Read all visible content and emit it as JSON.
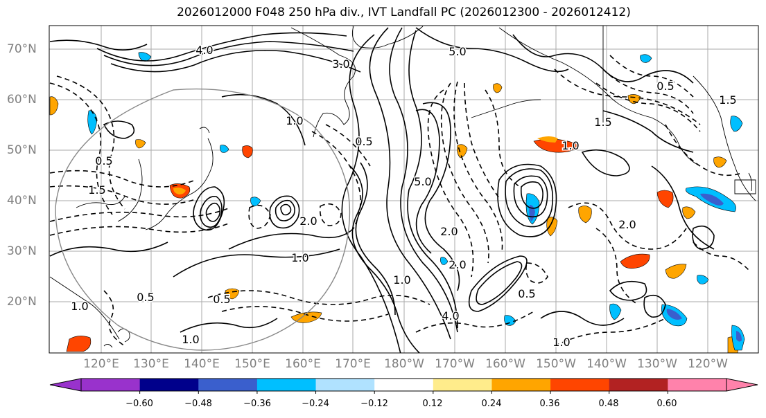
{
  "title": "2026012000 F048 250 hPa div., IVT Landfall PC (2026012300 - 2026012412)",
  "latitude_labels": [
    "70°N",
    "60°N",
    "50°N",
    "40°N",
    "30°N",
    "20°N"
  ],
  "longitude_labels": [
    "120°E",
    "130°E",
    "140°E",
    "150°E",
    "160°E",
    "170°E",
    "180°W",
    "170°W",
    "160°W",
    "150°W",
    "140°W",
    "130°W",
    "120°W"
  ],
  "colorbar": {
    "colors": [
      "#9932cc",
      "#00008b",
      "#3a5fcd",
      "#00bfff",
      "#b0e2ff",
      "#ffffff",
      "#ffec8b",
      "#ffa500",
      "#ff4500",
      "#b22222",
      "#ff82ab"
    ],
    "tick_labels": [
      "−0.60",
      "−0.48",
      "−0.36",
      "−0.24",
      "−0.12",
      "0.12",
      "0.24",
      "0.36",
      "0.48",
      "0.60"
    ]
  },
  "contour_labels": [
    {
      "text": "5.0"
    },
    {
      "text": "3.0"
    },
    {
      "text": "4.0"
    },
    {
      "text": "1.0"
    },
    {
      "text": "0.5"
    },
    {
      "text": "1.5"
    },
    {
      "text": "2.0"
    },
    {
      "text": "5.0"
    },
    {
      "text": "2.0"
    },
    {
      "text": "0.5"
    },
    {
      "text": "1.0"
    },
    {
      "text": "1.5"
    },
    {
      "text": "1.0"
    },
    {
      "text": "0.5"
    },
    {
      "text": "1.0"
    },
    {
      "text": "4.0"
    },
    {
      "text": "1.0"
    },
    {
      "text": "2.0"
    },
    {
      "text": "1.5"
    },
    {
      "text": "0.5"
    },
    {
      "text": "0.5"
    },
    {
      "text": "1.0"
    },
    {
      "text": "0.5"
    },
    {
      "text": "2.0"
    },
    {
      "text": "1.0"
    }
  ],
  "colors": {
    "contour": "#000000",
    "coastline": "#000000",
    "gridline": "#aaaaaa",
    "circle": "#888888",
    "axis_label": "#808080"
  }
}
